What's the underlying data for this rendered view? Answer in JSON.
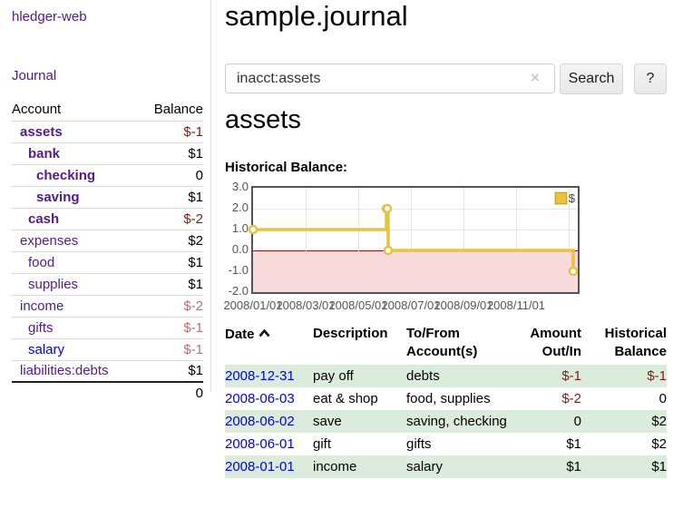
{
  "colors": {
    "link_purple": "#551a8b",
    "link_blue": "#0000ee",
    "negative_strong": "#7f1c15",
    "negative_soft": "#b96f6f",
    "row_stripe_green": "#dcecdc",
    "chart_line_gold": "#e8c240",
    "chart_negative_fill": "#f9dada",
    "chart_zero_line": "#8e1313"
  },
  "sidebar": {
    "app_title": "hledger-web",
    "journal_link": "Journal",
    "accounts_table": {
      "account_header": "Account",
      "balance_header": "Balance",
      "rows": [
        {
          "label": "assets",
          "balance": "$-1",
          "depth": 1
        },
        {
          "label": "bank",
          "balance": "$1",
          "depth": 2
        },
        {
          "label": "checking",
          "balance": "0",
          "depth": 3
        },
        {
          "label": "saving",
          "balance": "$1",
          "depth": 3
        },
        {
          "label": "cash",
          "balance": "$-2",
          "depth": 2
        },
        {
          "label": "expenses",
          "balance": "$2",
          "depth": 1
        },
        {
          "label": "food",
          "balance": "$1",
          "depth": 2
        },
        {
          "label": "supplies",
          "balance": "$1",
          "depth": 2
        },
        {
          "label": "income",
          "balance": "$-2",
          "depth": 1
        },
        {
          "label": "gifts",
          "balance": "$-1",
          "depth": 2
        },
        {
          "label": "salary",
          "balance": "$-1",
          "depth": 2
        },
        {
          "label": "liabilities:debts",
          "balance": "$1",
          "depth": 1
        }
      ],
      "total": "0"
    }
  },
  "main": {
    "title": "sample.journal",
    "search": {
      "value": "inacct:assets",
      "placeholder": "",
      "clear_label": "×",
      "button": "Search",
      "help_button": "?"
    },
    "account_heading": "assets",
    "chart_heading": "Historical Balance:"
  },
  "chart_data": {
    "type": "line",
    "title": "Historical Balance",
    "step": true,
    "series": [
      {
        "name": "$",
        "color": "#e8c240",
        "points": [
          {
            "x": "2008-01-01",
            "y": 1
          },
          {
            "x": "2008-06-01",
            "y": 2
          },
          {
            "x": "2008-06-02",
            "y": 2
          },
          {
            "x": "2008-06-03",
            "y": 0
          },
          {
            "x": "2008-12-31",
            "y": -1
          }
        ]
      }
    ],
    "ylim": [
      -2,
      3
    ],
    "ytick_labels": [
      "3.0",
      "2.0",
      "1.0",
      "0.0",
      "-1.0",
      "-2.0"
    ],
    "xtick_labels": [
      "2008/01/01",
      "2008/03/01",
      "2008/05/01",
      "2008/07/01",
      "2008/09/01",
      "2008/11/01"
    ],
    "grid": true,
    "legend": {
      "position": "top-right",
      "label": "$"
    },
    "negative_region_shaded": true
  },
  "register_table": {
    "headers": {
      "date": "Date",
      "description": "Description",
      "accounts": "To/From Account(s)",
      "amount": "Amount Out/In",
      "balance": "Historical Balance"
    },
    "rows": [
      {
        "date": "2008-12-31",
        "description": "pay off",
        "accounts": "debts",
        "amount": "$-1",
        "balance": "$-1"
      },
      {
        "date": "2008-06-03",
        "description": "eat & shop",
        "accounts": "food, supplies",
        "amount": "$-2",
        "balance": "0"
      },
      {
        "date": "2008-06-02",
        "description": "save",
        "accounts": "saving, checking",
        "amount": "0",
        "balance": "$2"
      },
      {
        "date": "2008-06-01",
        "description": "gift",
        "accounts": "gifts",
        "amount": "$1",
        "balance": "$2"
      },
      {
        "date": "2008-01-01",
        "description": "income",
        "accounts": "salary",
        "amount": "$1",
        "balance": "$1"
      }
    ]
  }
}
